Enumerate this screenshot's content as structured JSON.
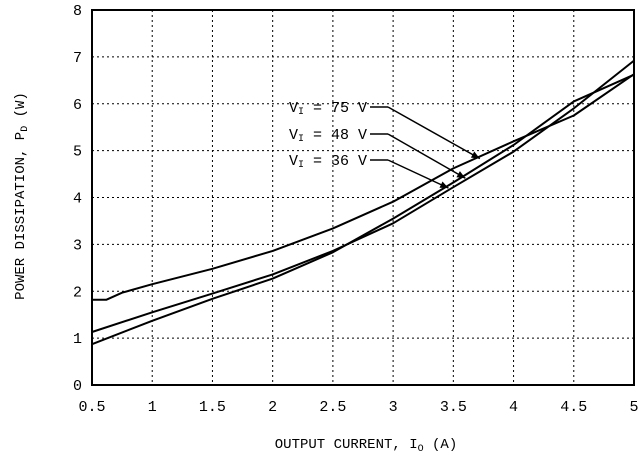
{
  "chart_data": {
    "type": "line",
    "xlabel": "OUTPUT  CURRENT, I",
    "xlabel_sub": "O",
    "xlabel_unit": " (A)",
    "ylabel": "POWER  DISSIPATION, P",
    "ylabel_sub": "D",
    "ylabel_unit": " (W)",
    "xlim": [
      0.5,
      5
    ],
    "ylim": [
      0,
      8
    ],
    "x_ticks": [
      0.5,
      1,
      1.5,
      2,
      2.5,
      3,
      3.5,
      4,
      4.5,
      5
    ],
    "x_tick_labels": [
      "0.5",
      "1",
      "1.5",
      "2",
      "2.5",
      "3",
      "3.5",
      "4",
      "4.5",
      "5"
    ],
    "y_ticks": [
      0,
      1,
      2,
      3,
      4,
      5,
      6,
      7,
      8
    ],
    "y_tick_labels": [
      "0",
      "1",
      "2",
      "3",
      "4",
      "5",
      "6",
      "7",
      "8"
    ],
    "grid": true,
    "grid_style": "dotted",
    "series": [
      {
        "name": "VI = 75 V",
        "label_prefix": "V",
        "label_sub": "I",
        "label_suffix": " = 75 V",
        "x": [
          0.5,
          0.62,
          0.75,
          1.0,
          1.5,
          2.0,
          2.5,
          3.0,
          3.5,
          4.0,
          4.5,
          5.0
        ],
        "y": [
          1.82,
          1.82,
          1.97,
          2.15,
          2.48,
          2.86,
          3.34,
          3.91,
          4.62,
          5.2,
          5.75,
          6.63
        ]
      },
      {
        "name": "VI = 48 V",
        "label_prefix": "V",
        "label_sub": "I",
        "label_suffix": " = 48 V",
        "x": [
          0.5,
          1.0,
          1.5,
          2.0,
          2.5,
          3.0,
          3.5,
          4.0,
          4.5,
          5.0
        ],
        "y": [
          1.13,
          1.55,
          1.95,
          2.36,
          2.86,
          3.45,
          4.22,
          4.98,
          5.9,
          6.92
        ]
      },
      {
        "name": "VI = 36 V",
        "label_prefix": "V",
        "label_sub": "I",
        "label_suffix": " = 36 V",
        "x": [
          0.5,
          1.0,
          1.5,
          2.0,
          2.5,
          3.0,
          3.5,
          4.0,
          4.5,
          5.0
        ],
        "y": [
          0.87,
          1.37,
          1.84,
          2.27,
          2.83,
          3.55,
          4.32,
          5.12,
          6.05,
          6.62
        ]
      }
    ]
  }
}
